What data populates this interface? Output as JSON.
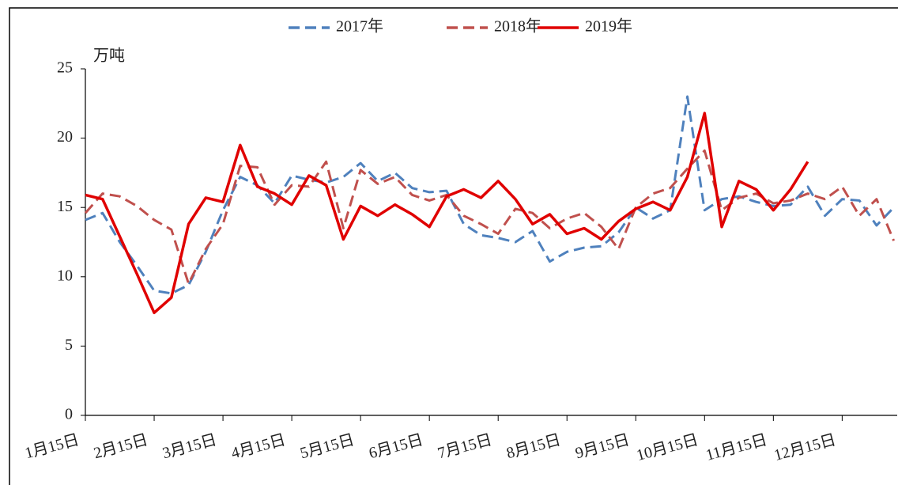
{
  "chart_data": {
    "type": "line",
    "y_label": "万吨",
    "x": [
      0,
      0.25,
      0.5,
      0.75,
      1,
      1.25,
      1.5,
      1.75,
      2,
      2.25,
      2.5,
      2.75,
      3,
      3.25,
      3.5,
      3.75,
      4,
      4.25,
      4.5,
      4.75,
      5,
      5.25,
      5.5,
      5.75,
      6,
      6.25,
      6.5,
      6.75,
      7,
      7.25,
      7.5,
      7.75,
      8,
      8.25,
      8.5,
      8.75,
      9,
      9.25,
      9.5,
      9.75,
      10,
      10.25,
      10.5,
      10.75,
      11,
      11.25,
      11.5,
      11.75
    ],
    "series": [
      {
        "name": "2017年",
        "color": "#4f81bd",
        "dash": true,
        "values": [
          14.1,
          14.6,
          12.5,
          10.8,
          9.0,
          8.8,
          9.4,
          11.8,
          14.8,
          17.2,
          16.6,
          15.3,
          17.3,
          17.0,
          16.8,
          17.2,
          18.2,
          16.9,
          17.5,
          16.4,
          16.1,
          16.2,
          13.8,
          13.0,
          12.8,
          12.5,
          13.3,
          11.1,
          11.8,
          12.1,
          12.2,
          13.2,
          15.0,
          14.2,
          14.8,
          23.0,
          14.8,
          15.6,
          15.8,
          15.4,
          15.1,
          15.2,
          16.5,
          14.4,
          15.6,
          15.5,
          13.7,
          15.0
        ]
      },
      {
        "name": "2018年",
        "color": "#c0504d",
        "dash": true,
        "values": [
          14.6,
          16.0,
          15.8,
          15.1,
          14.1,
          13.4,
          9.5,
          12.0,
          13.8,
          18.0,
          17.9,
          15.2,
          16.6,
          16.5,
          18.3,
          13.5,
          17.7,
          16.7,
          17.2,
          15.9,
          15.5,
          15.9,
          14.4,
          13.8,
          13.1,
          14.9,
          14.6,
          13.5,
          14.2,
          14.6,
          13.6,
          12.0,
          15.0,
          16.0,
          16.4,
          17.8,
          19.1,
          14.8,
          15.7,
          16.0,
          15.3,
          15.5,
          16.0,
          15.6,
          16.5,
          14.4,
          15.6,
          12.6
        ]
      },
      {
        "name": "2019年",
        "color": "#e00000",
        "dash": false,
        "values": [
          15.9,
          15.6,
          12.9,
          10.2,
          7.4,
          8.5,
          13.8,
          15.7,
          15.4,
          19.5,
          16.5,
          16.0,
          15.2,
          17.3,
          16.6,
          12.7,
          15.1,
          14.4,
          15.2,
          14.5,
          13.6,
          15.8,
          16.3,
          15.7,
          16.9,
          15.6,
          13.8,
          14.5,
          13.1,
          13.5,
          12.7,
          14.0,
          14.9,
          15.4,
          14.8,
          17.2,
          21.8,
          13.6,
          16.9,
          16.3,
          14.8,
          16.3,
          18.3,
          null,
          null,
          null,
          null,
          null
        ]
      }
    ],
    "xlim": [
      0,
      11.8
    ],
    "xticks": [
      {
        "value": 0,
        "label": "1月15日"
      },
      {
        "value": 1,
        "label": "2月15日"
      },
      {
        "value": 2,
        "label": "3月15日"
      },
      {
        "value": 3,
        "label": "4月15日"
      },
      {
        "value": 4,
        "label": "5月15日"
      },
      {
        "value": 5,
        "label": "6月15日"
      },
      {
        "value": 6,
        "label": "7月15日"
      },
      {
        "value": 7,
        "label": "8月15日"
      },
      {
        "value": 8,
        "label": "9月15日"
      },
      {
        "value": 9,
        "label": "10月15日"
      },
      {
        "value": 10,
        "label": "11月15日"
      },
      {
        "value": 11,
        "label": "12月15日"
      }
    ],
    "ylim": [
      0,
      25
    ],
    "yticks": [
      0,
      5,
      10,
      15,
      20,
      25
    ],
    "legend": "top"
  }
}
